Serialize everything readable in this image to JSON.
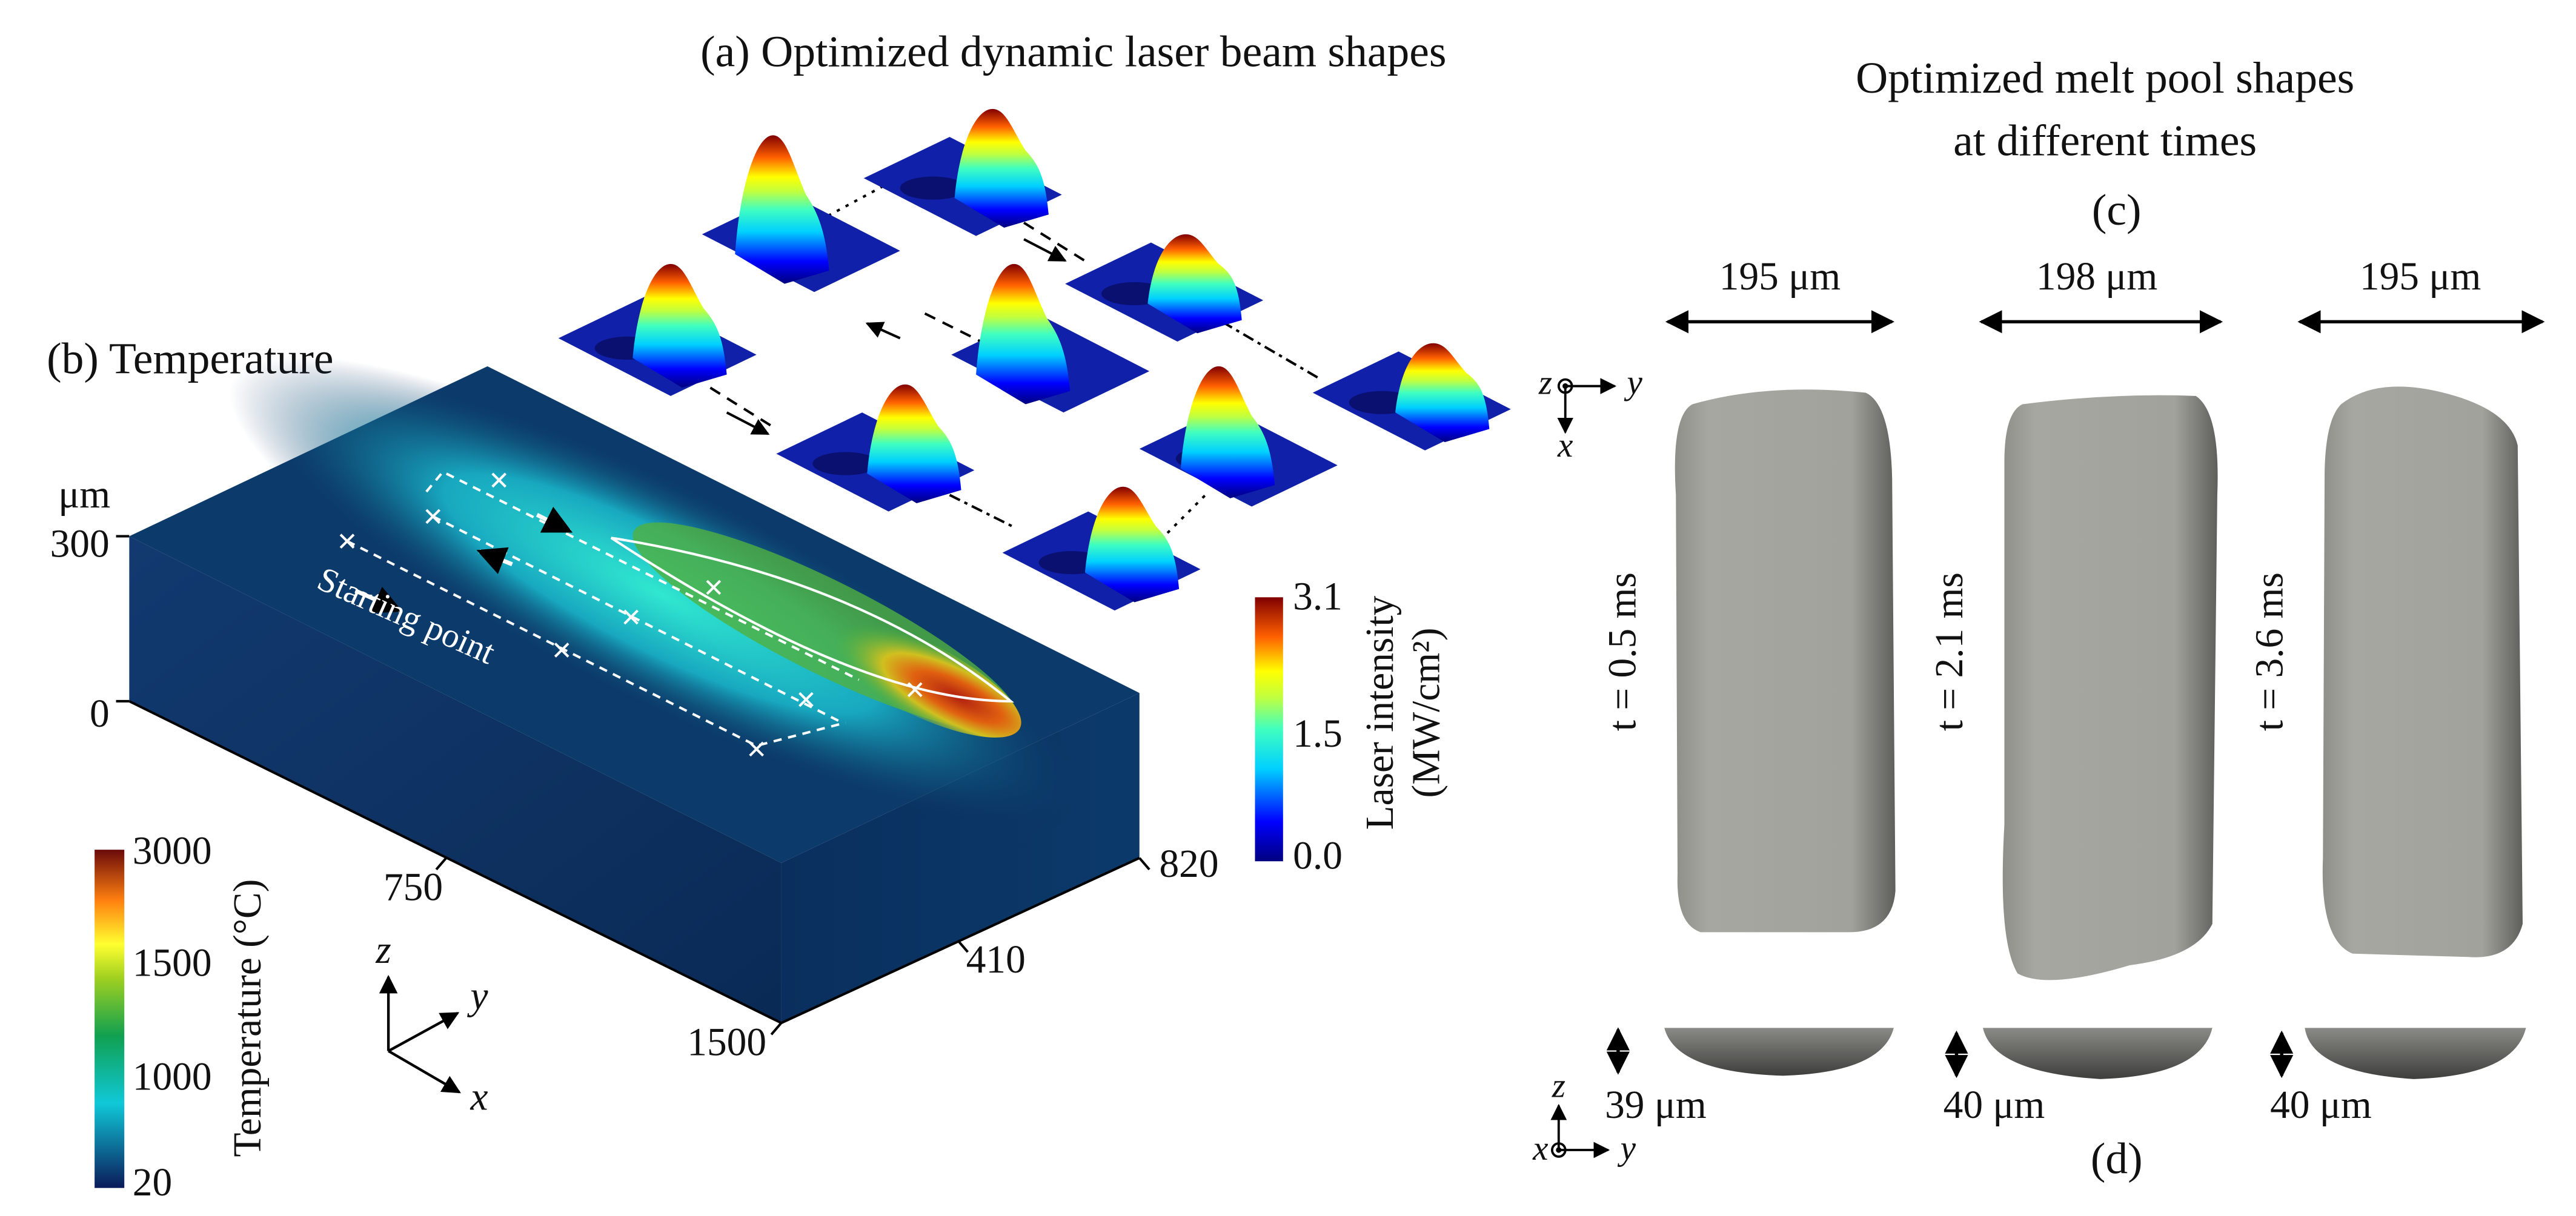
{
  "panel_a": {
    "title": "(a) Optimized dynamic laser beam shapes"
  },
  "panel_b": {
    "title": "(b) Temperature",
    "z_unit": "μm",
    "z_ticks": [
      "300",
      "0"
    ],
    "x_ticks": [
      "750",
      "1500"
    ],
    "y_ticks": [
      "410",
      "820"
    ],
    "annotation": "Starting point",
    "axes": [
      "z",
      "y",
      "x"
    ]
  },
  "temperature_colorbar": {
    "label": "Temperature (°C)",
    "ticks": [
      "3000",
      "1500",
      "1000",
      "20"
    ]
  },
  "laser_colorbar": {
    "label": "Laser intensity",
    "unit": "(MW/cm²)",
    "ticks": [
      "3.1",
      "1.5",
      "0.0"
    ]
  },
  "panel_c": {
    "title": "Optimized melt pool shapes",
    "subtitle": "at different times",
    "label": "(c)",
    "axes": [
      "z",
      "y",
      "x"
    ],
    "widths": [
      "195 μm",
      "198 μm",
      "195 μm"
    ],
    "times": [
      "t = 0.5 ms",
      "t = 2.1 ms",
      "t = 3.6 ms"
    ]
  },
  "panel_d": {
    "label": "(d)",
    "axes": [
      "z",
      "x",
      "y"
    ],
    "depths": [
      "39 μm",
      "40 μm",
      "40 μm"
    ]
  }
}
